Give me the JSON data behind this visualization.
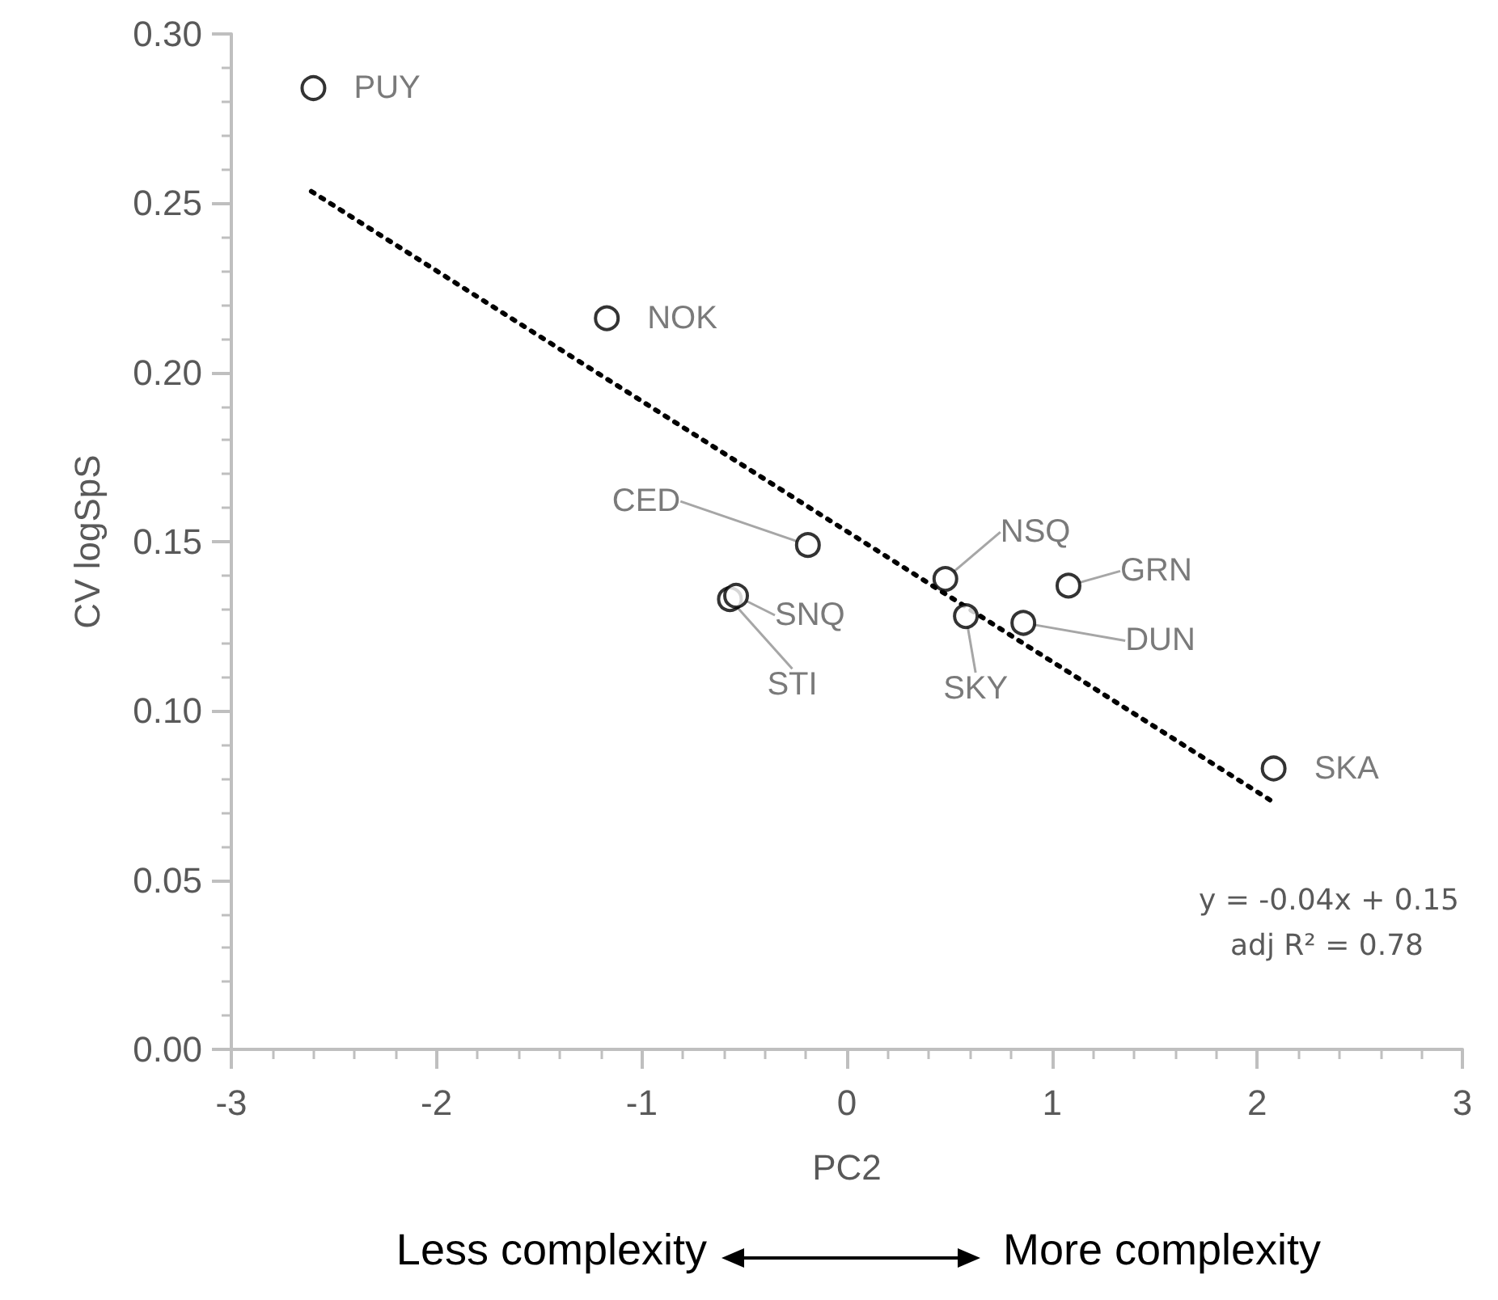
{
  "chart_data": {
    "type": "scatter",
    "xlabel": "PC2",
    "ylabel": "CV logSpS",
    "xlim": [
      -3,
      3
    ],
    "xticks": [
      -3,
      -2,
      -1,
      0,
      1,
      2,
      3
    ],
    "ylim": [
      0,
      0.3
    ],
    "yticks": [
      {
        "value": 0,
        "label": "0.00"
      },
      {
        "value": 0.05,
        "label": "0.05"
      },
      {
        "value": 0.1,
        "label": "0.10"
      },
      {
        "value": 0.15,
        "label": "0.15"
      },
      {
        "value": 0.2,
        "label": "0.20"
      },
      {
        "value": 0.25,
        "label": "0.25"
      },
      {
        "value": 0.3,
        "label": "0.30"
      }
    ],
    "series": [
      {
        "color": "#000000",
        "marker": "circle",
        "x": [
          -2.6,
          -1.17,
          -0.19,
          -0.57,
          -0.54,
          0.48,
          0.58,
          0.86,
          1.08,
          2.08
        ],
        "values": [
          0.284,
          0.216,
          0.149,
          0.133,
          0.134,
          0.139,
          0.128,
          0.126,
          0.137,
          0.083
        ],
        "value_labels": [
          "PUY",
          "NOK",
          "CED",
          "STI",
          "SNQ",
          "NSQ",
          "SKY",
          "DUN",
          "GRN",
          "SKA"
        ]
      },
      {
        "type": "line",
        "color": "#000000",
        "marker": "none",
        "line_style": "dotted",
        "x": [
          -2.61,
          2.08
        ],
        "values": [
          0.2535,
          0.073
        ]
      }
    ],
    "annotations": [
      "y = -0.04x + 0.15",
      "adj R² = 0.78",
      "Less complexity",
      "More complexity"
    ]
  }
}
